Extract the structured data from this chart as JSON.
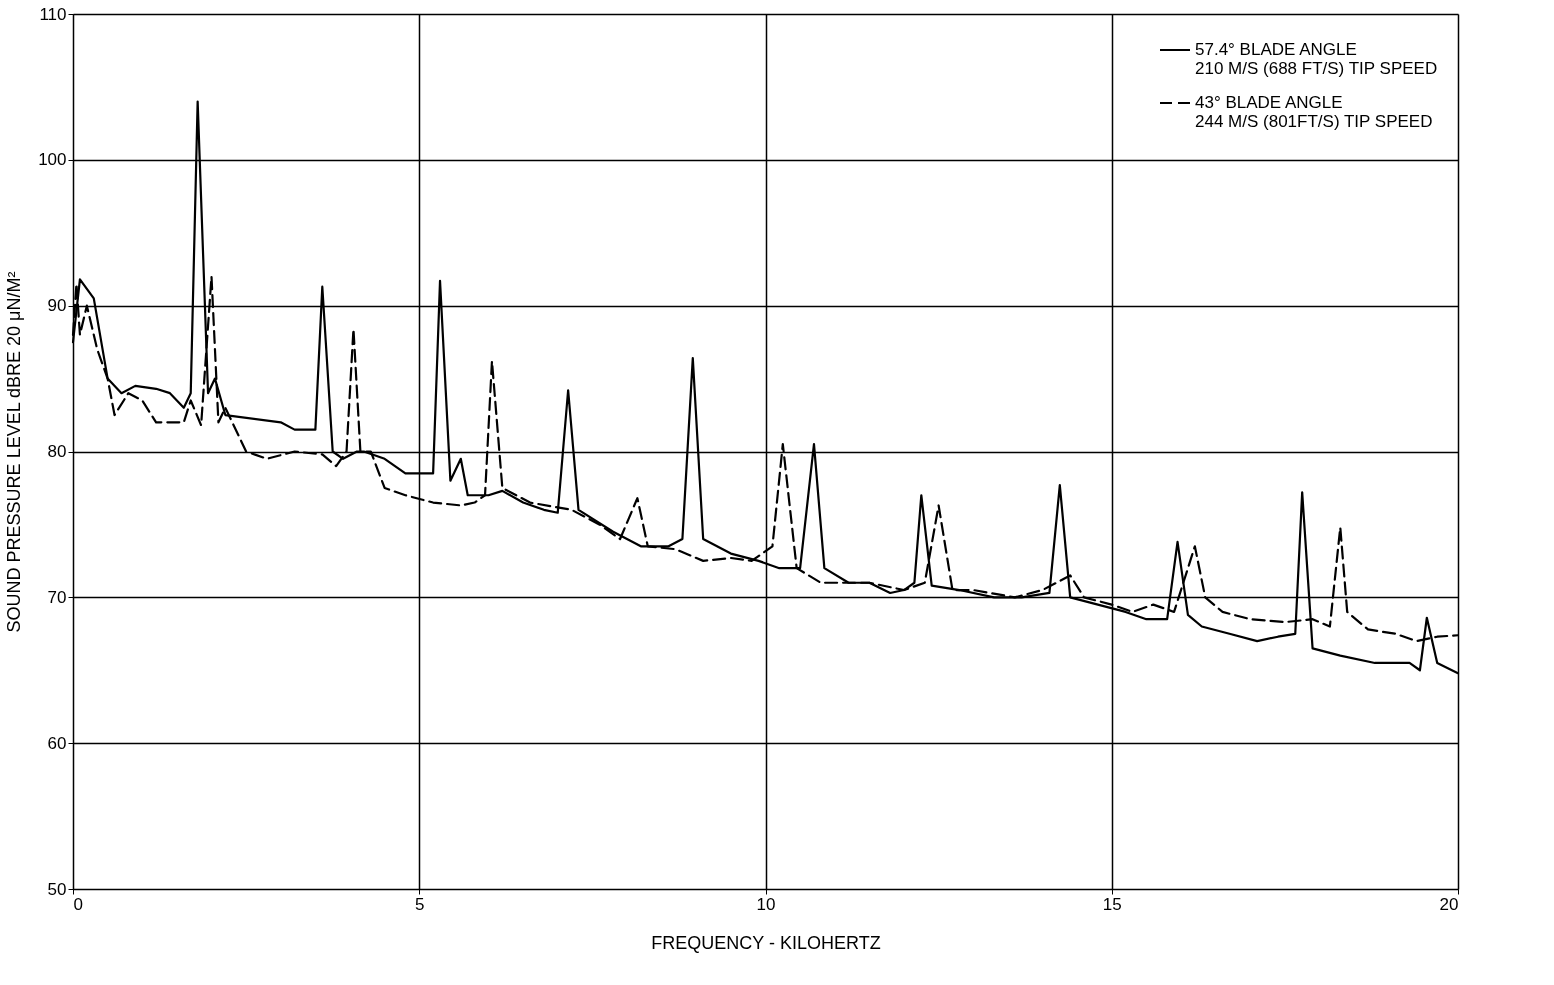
{
  "chart_data": {
    "type": "line",
    "xlabel": "FREQUENCY - KILOHERTZ",
    "ylabel": "SOUND PRESSURE LEVEL dBRE 20 μN/M²",
    "xlim": [
      0,
      20
    ],
    "xticks": [
      0,
      5,
      10,
      15,
      20
    ],
    "ylim": [
      50,
      110
    ],
    "yticks": [
      50,
      60,
      70,
      80,
      90,
      100,
      110
    ],
    "grid": true,
    "legend": "top right",
    "series": [
      {
        "name": "57.4° BLADE ANGLE\n210 M/S (688 FT/S) TIP SPEED",
        "color": "#000000",
        "line_style": "solid",
        "x": [
          0,
          0.1,
          0.3,
          0.5,
          0.7,
          0.9,
          1.2,
          1.4,
          1.6,
          1.7,
          1.8,
          1.95,
          2.05,
          2.2,
          3.0,
          3.2,
          3.5,
          3.6,
          3.75,
          3.9,
          4.1,
          4.2,
          4.5,
          4.8,
          5.2,
          5.3,
          5.45,
          5.6,
          5.7,
          6.0,
          6.2,
          6.5,
          6.8,
          7.0,
          7.15,
          7.3,
          7.8,
          8.2,
          8.6,
          8.8,
          8.95,
          9.1,
          9.5,
          9.9,
          10.2,
          10.5,
          10.7,
          10.85,
          11.2,
          11.5,
          11.8,
          12.0,
          12.15,
          12.25,
          12.4,
          12.8,
          13.3,
          13.7,
          14.1,
          14.25,
          14.4,
          14.8,
          15.2,
          15.5,
          15.8,
          15.95,
          16.1,
          16.3,
          16.7,
          17.1,
          17.4,
          17.65,
          17.75,
          17.9,
          18.3,
          18.8,
          19.3,
          19.45,
          19.55,
          19.7,
          20
        ],
        "values": [
          87.5,
          91.8,
          90.5,
          85,
          84,
          84.5,
          84.3,
          84,
          83,
          84,
          104,
          84,
          85,
          82.5,
          82,
          81.5,
          81.5,
          91.3,
          80,
          79.5,
          80,
          80,
          79.5,
          78.5,
          78.5,
          91.7,
          78,
          79.5,
          77,
          77,
          77.3,
          76.5,
          76,
          75.8,
          84.2,
          76,
          74.5,
          73.5,
          73.5,
          74,
          86.4,
          74,
          73,
          72.5,
          72,
          72,
          80.5,
          72,
          71,
          71,
          70.3,
          70.5,
          71,
          77,
          70.8,
          70.5,
          70,
          70,
          70.3,
          77.7,
          70,
          69.5,
          69,
          68.5,
          68.5,
          73.8,
          68.8,
          68,
          67.5,
          67,
          67.3,
          67.5,
          77.2,
          66.5,
          66,
          65.5,
          65.5,
          65,
          68.6,
          65.5,
          64.8
        ]
      },
      {
        "name": "43° BLADE ANGLE\n244 M/S (801FT/S) TIP SPEED",
        "color": "#000000",
        "line_style": "dashed",
        "x": [
          0,
          0.05,
          0.1,
          0.2,
          0.35,
          0.5,
          0.6,
          0.8,
          1.0,
          1.2,
          1.6,
          1.7,
          1.85,
          2.0,
          2.1,
          2.2,
          2.5,
          2.8,
          3.2,
          3.6,
          3.8,
          3.95,
          4.05,
          4.15,
          4.3,
          4.5,
          4.8,
          5.2,
          5.6,
          5.8,
          5.95,
          6.05,
          6.2,
          6.6,
          7.2,
          7.6,
          7.9,
          8.15,
          8.3,
          8.7,
          9.1,
          9.5,
          9.8,
          10.1,
          10.25,
          10.45,
          10.8,
          11.5,
          12.0,
          12.3,
          12.5,
          12.7,
          13.0,
          13.6,
          14.0,
          14.4,
          14.6,
          15.0,
          15.3,
          15.6,
          15.9,
          16.2,
          16.35,
          16.6,
          17.0,
          17.5,
          17.9,
          18.15,
          18.3,
          18.4,
          18.7,
          19.1,
          19.4,
          19.7,
          20
        ],
        "values": [
          88,
          91.5,
          88,
          90,
          87,
          85,
          82.5,
          84,
          83.5,
          82,
          82,
          83.5,
          81.8,
          92,
          82,
          83,
          80,
          79.5,
          80,
          79.8,
          79,
          80,
          88.4,
          80,
          80,
          77.5,
          77,
          76.5,
          76.3,
          76.5,
          77,
          86.2,
          77.5,
          76.5,
          76,
          75,
          74,
          76.8,
          73.5,
          73.3,
          72.5,
          72.7,
          72.5,
          73.5,
          80.5,
          72,
          71,
          71,
          70.5,
          71,
          76.3,
          70.5,
          70.5,
          70,
          70.5,
          71.5,
          70,
          69.5,
          69,
          69.5,
          69,
          73.5,
          70,
          69,
          68.5,
          68.3,
          68.5,
          68,
          74.8,
          69,
          67.8,
          67.5,
          67,
          67.3,
          67.4
        ]
      }
    ]
  }
}
